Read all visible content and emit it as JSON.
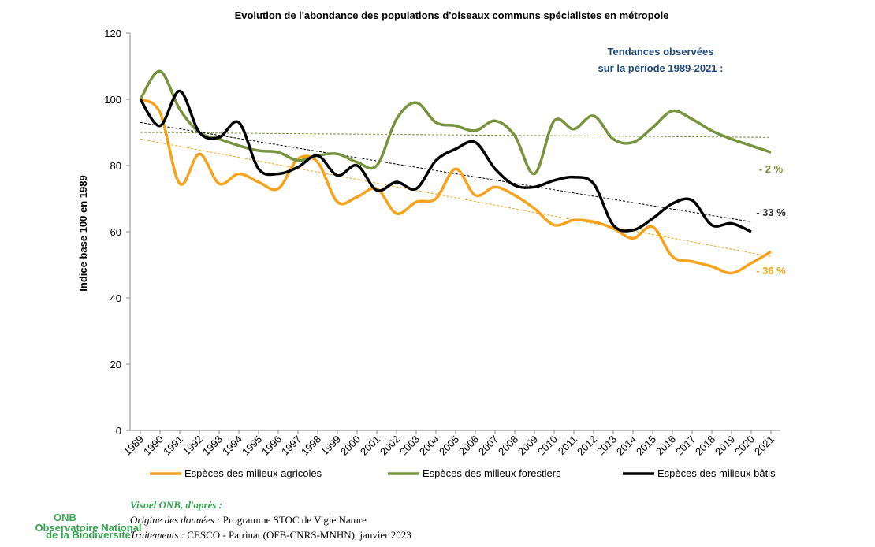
{
  "chart_data": {
    "type": "line",
    "title": "Evolution de l'abondance des populations d'oiseaux communs spécialistes en métropole",
    "ylabel": "Indice base 100 en 1989",
    "annotation_title": [
      "Tendances observées",
      "sur la période 1989-2021 :"
    ],
    "categories": [
      "1989",
      "1990",
      "1991",
      "1992",
      "1993",
      "1994",
      "1995",
      "1996",
      "1997",
      "1998",
      "1999",
      "2000",
      "2001",
      "2002",
      "2003",
      "2004",
      "2005",
      "2006",
      "2007",
      "2008",
      "2009",
      "2010",
      "2011",
      "2012",
      "2013",
      "2014",
      "2015",
      "2016",
      "2017",
      "2018",
      "2019",
      "2020",
      "2021"
    ],
    "ylim": [
      0,
      120
    ],
    "yticks": [
      0,
      20,
      40,
      60,
      80,
      100,
      120
    ],
    "smooth": true,
    "series": [
      {
        "name": "Espèces des milieux agricoles",
        "color": "#f7a21b",
        "trend": [
          88,
          52.5
        ],
        "trend_label": "- 36 %",
        "values": [
          100,
          96,
          74.5,
          83.5,
          74.5,
          77.5,
          75,
          73,
          82,
          81,
          69,
          70.5,
          73,
          65.5,
          69,
          70,
          79,
          71,
          73.5,
          71,
          67,
          62,
          63.5,
          63,
          61,
          58,
          61.5,
          52.5,
          51,
          49.5,
          47.5,
          50.5,
          54
        ]
      },
      {
        "name": "Espèces des milieux forestiers",
        "color": "#77933c",
        "trend": [
          90,
          88.5
        ],
        "trend_label": "- 2 %",
        "values": [
          100,
          108.5,
          97,
          90,
          88,
          86,
          84.5,
          84,
          81.5,
          83,
          83.5,
          81,
          80,
          94,
          99,
          93,
          92,
          90.5,
          93.5,
          89,
          77.5,
          93.5,
          91,
          95,
          88,
          87,
          91.5,
          96.5,
          94,
          90.5,
          88,
          86,
          84
        ]
      },
      {
        "name": "Espèces des milieux bâtis",
        "color": "#000000",
        "trend": [
          93,
          63
        ],
        "trend_label": "- 33 %",
        "values": [
          100,
          92,
          102.5,
          90,
          88.5,
          93,
          79,
          77.5,
          79.5,
          83,
          77,
          80,
          72.5,
          75,
          73,
          81.5,
          85,
          87,
          79,
          74,
          73.5,
          75.5,
          76.5,
          74.5,
          62,
          60.5,
          64,
          68.5,
          69.5,
          62,
          62.5,
          60,
          null
        ]
      }
    ]
  },
  "footer": {
    "logo": "ONB",
    "logo_sub": [
      "Observatoire National",
      "de la Biodiversité"
    ],
    "heading": "Visuel ONB, d'après :",
    "lines": [
      {
        "label": "Origine des données :",
        "text": "Programme STOC de Vigie Nature"
      },
      {
        "label": "Traitements :",
        "text": "CESCO - Patrinat (OFB-CNRS-MNHN), janvier 2023"
      }
    ]
  }
}
